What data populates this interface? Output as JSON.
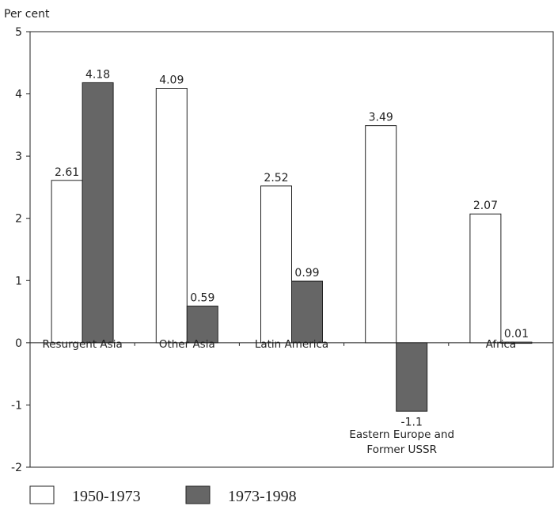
{
  "chart_data": {
    "type": "bar",
    "title": "",
    "ylabel": "Per cent",
    "xlabel": "",
    "ylim": [
      -2,
      5
    ],
    "yticks": [
      "5",
      "4",
      "3",
      "2",
      "1",
      "0",
      "-1",
      "-2"
    ],
    "categories": [
      "Resurgent Asia",
      "Other Asia",
      "Latin America",
      "Eastern Europe and Former USSR",
      "Africa"
    ],
    "category_label_lines": [
      [
        "Resurgent Asia"
      ],
      [
        "Other Asia"
      ],
      [
        "Latin America"
      ],
      [
        "Eastern Europe and",
        "Former USSR"
      ],
      [
        "Africa"
      ]
    ],
    "series": [
      {
        "name": "1950-1973",
        "values": [
          2.61,
          4.09,
          2.52,
          3.49,
          2.07
        ],
        "labels": [
          "2.61",
          "4.09",
          "2.52",
          "3.49",
          "2.07"
        ],
        "color": "#ffffff"
      },
      {
        "name": "1973-1998",
        "values": [
          4.18,
          0.59,
          0.99,
          -1.1,
          0.01
        ],
        "labels": [
          "4.18",
          "0.59",
          "0.99",
          "-1.1",
          "0.01"
        ],
        "color": "#666666"
      }
    ],
    "grid": false,
    "legend_position": "bottom-left"
  }
}
